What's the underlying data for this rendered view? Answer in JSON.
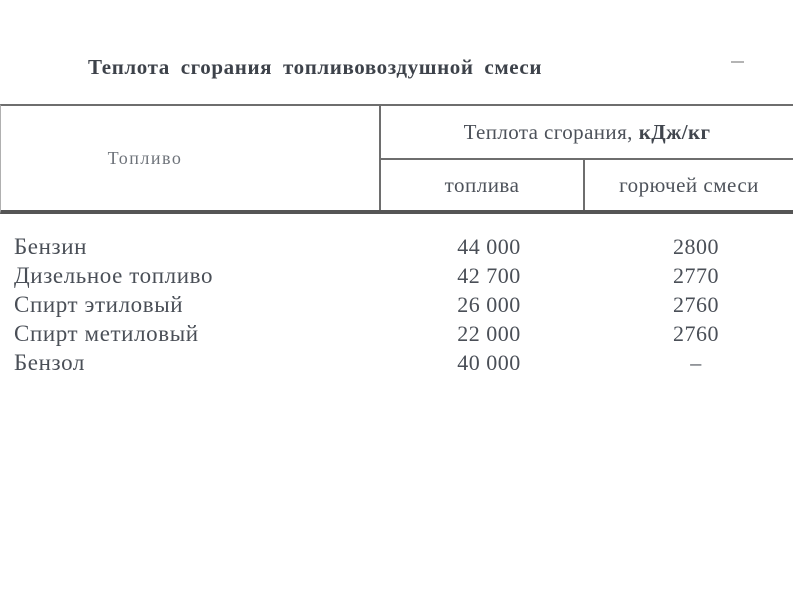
{
  "page": {
    "background": "#ffffff",
    "text_color": "#4a4f57",
    "line_color": "#6e6e6e"
  },
  "title": "Теплота сгорания топливовоздушной смеси",
  "table": {
    "fuel_column_header": "Топливо",
    "group_header": "Теплота сгорания,",
    "group_header_unit": "кДж/кг",
    "subcolumn_fuel": "топлива",
    "subcolumn_mixture": "горючей смеси",
    "rows": [
      {
        "fuel": "Бензин",
        "fuel_value": "44 000",
        "mixture_value": "2800"
      },
      {
        "fuel": "Дизельное топливо",
        "fuel_value": "42 700",
        "mixture_value": "2770"
      },
      {
        "fuel": "Спирт этиловый",
        "fuel_value": "26 000",
        "mixture_value": "2760"
      },
      {
        "fuel": "Спирт метиловый",
        "fuel_value": "22 000",
        "mixture_value": "2760"
      },
      {
        "fuel": "Бензол",
        "fuel_value": "40 000",
        "mixture_value": "–"
      }
    ]
  }
}
